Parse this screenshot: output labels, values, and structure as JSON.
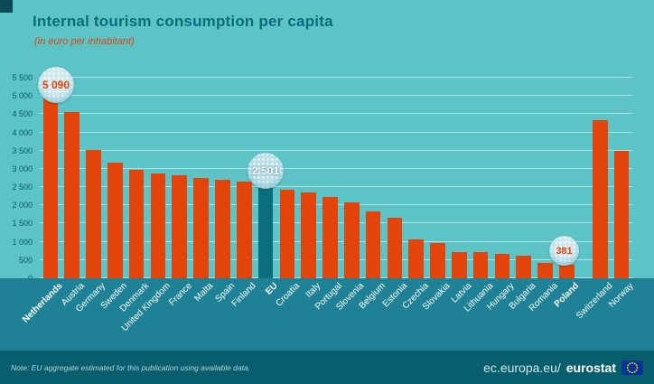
{
  "header": {
    "title": "Internal tourism consumption per capita",
    "subtitle": "(in euro per inhabitant)"
  },
  "colors": {
    "background": "#5cc4c6",
    "bar": "#e2440b",
    "eu_bar": "#0c6d7d",
    "label_band": "#1e8195",
    "footer_band": "#085e6d",
    "title_text": "#0c6b7b",
    "gridline": "#ffffff"
  },
  "chart_data": {
    "type": "bar",
    "title": "Internal tourism consumption per capita",
    "subtitle": "(in euro per inhabitant)",
    "ylim": [
      0,
      5500
    ],
    "ytick_values": [
      0,
      500,
      1000,
      1500,
      2000,
      2500,
      3000,
      3500,
      4000,
      4500,
      5000,
      5500
    ],
    "ytick_labels": [
      "0",
      "500",
      "1 000",
      "1 500",
      "2 000",
      "2 500",
      "3 000",
      "3 500",
      "4 000",
      "4 500",
      "5 000",
      "5 500"
    ],
    "grid": true,
    "categories": [
      "Netherlands",
      "Austria",
      "Germany",
      "Sweden",
      "Denmark",
      "United Kingdom",
      "France",
      "Malta",
      "Spain",
      "Finland",
      "EU",
      "Croatia",
      "Italy",
      "Portugal",
      "Slovenia",
      "Belgium",
      "Estonia",
      "Czechia",
      "Slovakia",
      "Latvia",
      "Lithuania",
      "Hungary",
      "Bulgaria",
      "Romania",
      "Poland",
      "Switzerland",
      "Norway"
    ],
    "values": [
      5090,
      4550,
      3520,
      3170,
      2970,
      2880,
      2820,
      2760,
      2690,
      2660,
      2501,
      2430,
      2360,
      2230,
      2090,
      1830,
      1650,
      1060,
      960,
      730,
      710,
      670,
      620,
      430,
      381,
      4330,
      3500
    ],
    "highlight_category": "EU",
    "bold_categories": [
      "Netherlands",
      "EU",
      "Poland"
    ],
    "gap_after_index": 24,
    "callouts": [
      {
        "category": "Netherlands",
        "label": "5 090"
      },
      {
        "category": "EU",
        "label": "2 501"
      },
      {
        "category": "Poland",
        "label": "381"
      }
    ]
  },
  "footer": {
    "note": "Note: EU aggregate estimated for this publication using available data.",
    "url_prefix": "ec.europa.eu/",
    "url_bold": "eurostat"
  }
}
